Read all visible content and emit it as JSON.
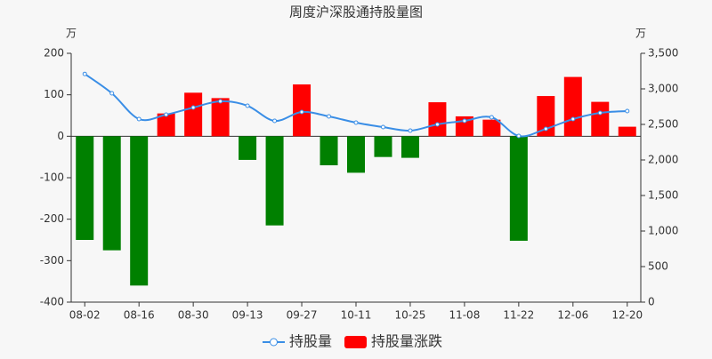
{
  "chart_data": {
    "type": "bar-line",
    "title": "周度沪深股通持股量图",
    "y_unit": "万",
    "y2_unit": "万",
    "categories": [
      "08-02",
      null,
      "08-16",
      null,
      "08-30",
      null,
      "09-13",
      null,
      "09-27",
      null,
      "10-11",
      null,
      "10-25",
      null,
      "11-08",
      null,
      "11-22",
      null,
      "12-06",
      null,
      "12-20"
    ],
    "series": [
      {
        "name": "持股量",
        "type": "line",
        "axis": "y2",
        "color": "#3a8ee6",
        "values": [
          3210,
          2937,
          2575,
          2637,
          2737,
          2825,
          2762,
          2550,
          2675,
          2612,
          2525,
          2462,
          2412,
          2500,
          2550,
          2600,
          2337,
          2437,
          2575,
          2662,
          2687
        ]
      },
      {
        "name": "持股量涨跌",
        "type": "bar",
        "axis": "y",
        "color": "#ff0000",
        "negative_color": "#008000",
        "values": [
          -250,
          -275,
          -360,
          55,
          105,
          92,
          -57,
          -215,
          125,
          -70,
          -88,
          -50,
          -52,
          82,
          48,
          40,
          -252,
          97,
          143,
          83,
          23
        ]
      }
    ],
    "ylim": [
      -400,
      200
    ],
    "yticks": [
      -400,
      -300,
      -200,
      -100,
      0,
      100,
      200
    ],
    "y2lim": [
      0,
      3500
    ],
    "y2ticks": [
      0,
      {
        "value": 500,
        "label": "500"
      },
      {
        "value": 1000,
        "label": "1,000"
      },
      {
        "value": 1500,
        "label": "1,500"
      },
      {
        "value": 2000,
        "label": "2,000"
      },
      {
        "value": 2500,
        "label": "2,500"
      },
      {
        "value": 3000,
        "label": "3,000"
      },
      {
        "value": 3500,
        "label": "3,500"
      }
    ],
    "grid": false,
    "legend": "bottom"
  }
}
